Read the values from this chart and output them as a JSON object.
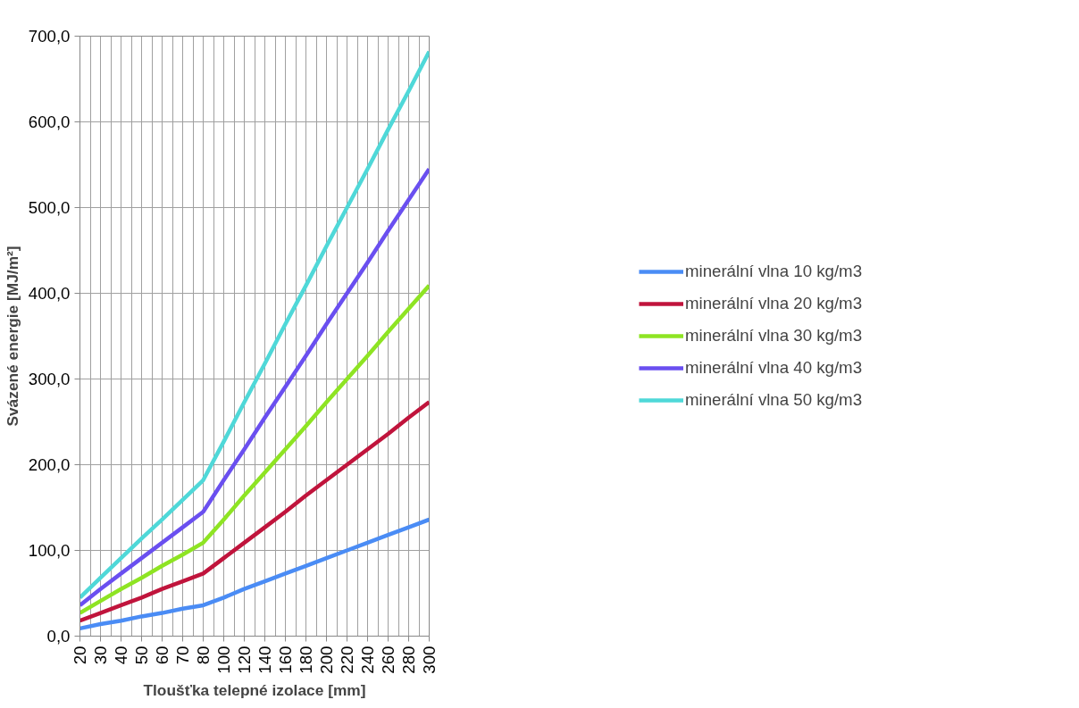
{
  "chart_data": {
    "type": "line",
    "xlabel": "Tloušťka telepné izolace [mm]",
    "ylabel": "Svázené energie [MJ/m²]",
    "categories": [
      "20",
      "30",
      "40",
      "50",
      "60",
      "70",
      "80",
      "100",
      "120",
      "140",
      "160",
      "180",
      "200",
      "220",
      "240",
      "260",
      "280",
      "300"
    ],
    "series": [
      {
        "name": "minerální vlna 10 kg/m3",
        "color": "#4a8cf5",
        "values": [
          9,
          14,
          18,
          23,
          27,
          32,
          36,
          45,
          55,
          64,
          73,
          82,
          91,
          100,
          109,
          118,
          127,
          136
        ]
      },
      {
        "name": "minerální vlna 20 kg/m3",
        "color": "#c0143c",
        "values": [
          18,
          27,
          36,
          45,
          55,
          64,
          73,
          91,
          109,
          127,
          145,
          164,
          182,
          200,
          218,
          236,
          255,
          273
        ]
      },
      {
        "name": "minerální vlna 30 kg/m3",
        "color": "#8ee423",
        "values": [
          27,
          41,
          55,
          68,
          82,
          95,
          109,
          136,
          164,
          191,
          218,
          245,
          273,
          300,
          327,
          355,
          382,
          409
        ]
      },
      {
        "name": "minerální vlna 40 kg/m3",
        "color": "#6a4ff0",
        "values": [
          36,
          55,
          73,
          91,
          109,
          127,
          145,
          182,
          218,
          255,
          291,
          327,
          364,
          400,
          436,
          473,
          509,
          545
        ]
      },
      {
        "name": "minerální vlna 50 kg/m3",
        "color": "#4fd8d8",
        "values": [
          45,
          68,
          91,
          114,
          136,
          159,
          182,
          227,
          273,
          318,
          364,
          409,
          455,
          500,
          545,
          591,
          636,
          682
        ]
      }
    ],
    "ylim": [
      0,
      700
    ],
    "yticks": [
      {
        "value": 0,
        "label": "0,0"
      },
      {
        "value": 100,
        "label": "100,0"
      },
      {
        "value": 200,
        "label": "200,0"
      },
      {
        "value": 300,
        "label": "300,0"
      },
      {
        "value": 400,
        "label": "400,0"
      },
      {
        "value": 500,
        "label": "500,0"
      },
      {
        "value": 600,
        "label": "600,0"
      },
      {
        "value": 700,
        "label": "700,0"
      }
    ],
    "grid": true,
    "legend": "right",
    "marker": "none",
    "line_style": "solid"
  }
}
